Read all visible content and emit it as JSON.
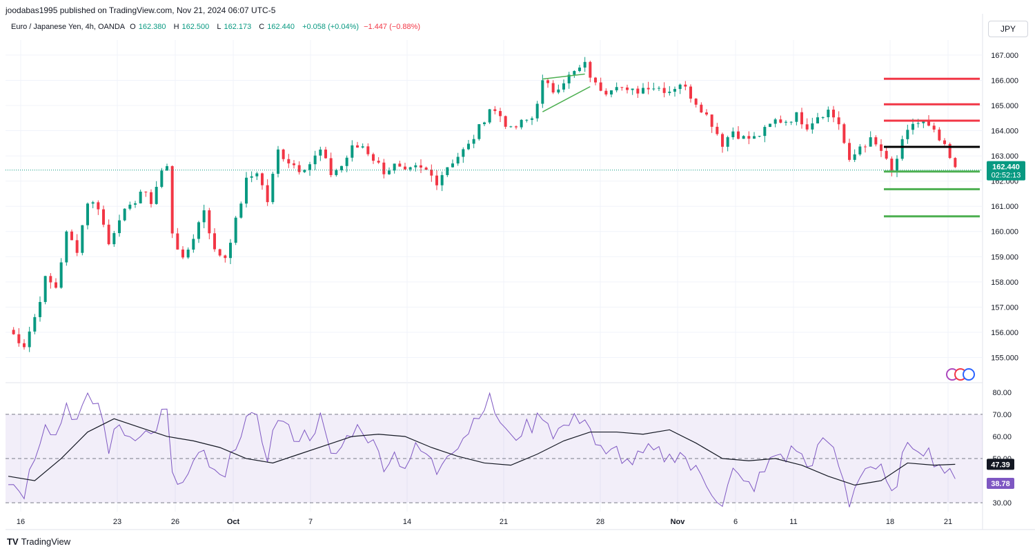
{
  "header": {
    "published": "joodabas1995 published on TradingView.com, Nov 21, 2024 06:07 UTC-5"
  },
  "legend": {
    "symbol": "Euro / Japanese Yen, 4h, OANDA",
    "open_label": "O",
    "open": "162.380",
    "high_label": "H",
    "high": "162.500",
    "low_label": "L",
    "low": "162.173",
    "close_label": "C",
    "close": "162.440",
    "change": "+0.058 (+0.04%)",
    "change2": "−1.447 (−0.88%)"
  },
  "currency_button": "JPY",
  "footer": {
    "logo": "TV",
    "brand": "TradingView"
  },
  "colors": {
    "up": "#089981",
    "down": "#f23645",
    "rsi": "#7e57c2",
    "rsi_ma": "#131722",
    "line_red": "#f23645",
    "line_green": "#4caf50",
    "line_black": "#000000",
    "price_tag": "#089981"
  },
  "chart_data": [
    {
      "type": "candlestick",
      "title": "Euro / Japanese Yen, 4h, OANDA",
      "ylim": [
        154.0,
        167.6
      ],
      "y_ticks": [
        "155.000",
        "156.000",
        "157.000",
        "158.000",
        "159.000",
        "160.000",
        "161.000",
        "162.000",
        "163.000",
        "164.000",
        "165.000",
        "166.000",
        "167.000"
      ],
      "x_ticks": [
        "16",
        "23",
        "26",
        "Oct",
        "7",
        "14",
        "21",
        "28",
        "Nov",
        "6",
        "11",
        "18",
        "21"
      ],
      "x_range": [
        "Sep 16",
        "Nov 21"
      ],
      "grid": true,
      "close_path": [
        [
          0,
          156.1
        ],
        [
          6,
          155.5
        ],
        [
          10,
          156.6
        ],
        [
          14,
          158.1
        ],
        [
          18,
          157.8
        ],
        [
          22,
          159.9
        ],
        [
          26,
          159.3
        ],
        [
          30,
          161.2
        ],
        [
          34,
          161.0
        ],
        [
          38,
          159.5
        ],
        [
          42,
          160.6
        ],
        [
          46,
          160.9
        ],
        [
          50,
          161.6
        ],
        [
          54,
          161.2
        ],
        [
          58,
          162.4
        ],
        [
          61,
          162.6
        ],
        [
          62,
          160.0
        ],
        [
          66,
          158.8
        ],
        [
          70,
          159.8
        ],
        [
          74,
          160.9
        ],
        [
          78,
          159.2
        ],
        [
          82,
          159.0
        ],
        [
          86,
          160.4
        ],
        [
          90,
          162.0
        ],
        [
          94,
          162.4
        ],
        [
          98,
          161.2
        ],
        [
          102,
          163.2
        ],
        [
          106,
          162.8
        ],
        [
          110,
          162.5
        ],
        [
          114,
          162.7
        ],
        [
          118,
          163.2
        ],
        [
          122,
          162.3
        ],
        [
          126,
          162.6
        ],
        [
          130,
          163.3
        ],
        [
          134,
          163.4
        ],
        [
          138,
          162.9
        ],
        [
          142,
          162.4
        ],
        [
          146,
          162.6
        ],
        [
          150,
          162.3
        ],
        [
          154,
          162.5
        ],
        [
          158,
          162.4
        ],
        [
          162,
          162.0
        ],
        [
          166,
          162.6
        ],
        [
          170,
          163.0
        ],
        [
          174,
          163.4
        ],
        [
          178,
          164.1
        ],
        [
          182,
          164.9
        ],
        [
          186,
          164.6
        ],
        [
          190,
          164.0
        ],
        [
          194,
          164.3
        ],
        [
          198,
          164.5
        ],
        [
          202,
          165.9
        ],
        [
          206,
          165.6
        ],
        [
          210,
          166.0
        ],
        [
          214,
          166.3
        ],
        [
          218,
          166.6
        ],
        [
          222,
          165.8
        ],
        [
          226,
          165.6
        ],
        [
          230,
          165.9
        ],
        [
          234,
          165.5
        ],
        [
          238,
          165.6
        ],
        [
          242,
          165.8
        ],
        [
          246,
          165.7
        ],
        [
          250,
          165.6
        ],
        [
          254,
          165.9
        ],
        [
          258,
          165.4
        ],
        [
          262,
          164.9
        ],
        [
          266,
          164.3
        ],
        [
          270,
          163.5
        ],
        [
          274,
          164.0
        ],
        [
          278,
          163.7
        ],
        [
          282,
          163.7
        ],
        [
          286,
          164.0
        ],
        [
          290,
          164.4
        ],
        [
          294,
          164.4
        ],
        [
          298,
          164.6
        ],
        [
          302,
          164.2
        ],
        [
          306,
          164.6
        ],
        [
          310,
          164.8
        ],
        [
          314,
          164.3
        ],
        [
          318,
          162.7
        ],
        [
          322,
          163.4
        ],
        [
          326,
          163.6
        ],
        [
          330,
          163.2
        ],
        [
          334,
          162.3
        ],
        [
          338,
          163.5
        ],
        [
          342,
          164.3
        ],
        [
          346,
          164.3
        ],
        [
          350,
          163.9
        ],
        [
          354,
          163.3
        ],
        [
          358,
          162.44
        ]
      ],
      "last_price": "162.440",
      "countdown": "02:52:13",
      "levels": [
        {
          "color": "red",
          "value": 166.06
        },
        {
          "color": "red",
          "value": 165.05
        },
        {
          "color": "red",
          "value": 164.4
        },
        {
          "color": "black",
          "value": 163.36
        },
        {
          "color": "green",
          "value": 162.38
        },
        {
          "color": "green",
          "value": 161.68
        },
        {
          "color": "green",
          "value": 160.6
        }
      ]
    },
    {
      "type": "line",
      "title": "RSI",
      "ylim": [
        26.0,
        84.0
      ],
      "y_ticks": [
        "30.00",
        "40.00",
        "50.00",
        "60.00",
        "70.00",
        "80.00"
      ],
      "bands": [
        30,
        50,
        70
      ],
      "series": [
        {
          "role": "rsi",
          "last": "38.78",
          "values": [
            [
              0,
              40
            ],
            [
              6,
              35
            ],
            [
              10,
              52
            ],
            [
              14,
              68
            ],
            [
              18,
              60
            ],
            [
              22,
              75
            ],
            [
              26,
              67
            ],
            [
              30,
              76
            ],
            [
              34,
              75
            ],
            [
              38,
              55
            ],
            [
              42,
              65
            ],
            [
              46,
              60
            ],
            [
              50,
              63
            ],
            [
              54,
              60
            ],
            [
              58,
              70
            ],
            [
              61,
              71
            ],
            [
              62,
              41
            ],
            [
              66,
              38
            ],
            [
              70,
              47
            ],
            [
              74,
              52
            ],
            [
              78,
              42
            ],
            [
              82,
              40
            ],
            [
              86,
              58
            ],
            [
              90,
              68
            ],
            [
              94,
              66
            ],
            [
              98,
              52
            ],
            [
              102,
              69
            ],
            [
              106,
              62
            ],
            [
              110,
              60
            ],
            [
              114,
              61
            ],
            [
              118,
              68
            ],
            [
              122,
              50
            ],
            [
              126,
              55
            ],
            [
              130,
              63
            ],
            [
              134,
              64
            ],
            [
              138,
              56
            ],
            [
              142,
              48
            ],
            [
              146,
              52
            ],
            [
              150,
              47
            ],
            [
              154,
              54
            ],
            [
              158,
              52
            ],
            [
              162,
              44
            ],
            [
              166,
              54
            ],
            [
              170,
              57
            ],
            [
              174,
              63
            ],
            [
              178,
              72
            ],
            [
              182,
              76
            ],
            [
              186,
              67
            ],
            [
              190,
              58
            ],
            [
              194,
              63
            ],
            [
              198,
              65
            ],
            [
              202,
              71
            ],
            [
              206,
              62
            ],
            [
              210,
              64
            ],
            [
              214,
              67
            ],
            [
              218,
              70
            ],
            [
              222,
              57
            ],
            [
              226,
              50
            ],
            [
              230,
              54
            ],
            [
              234,
              48
            ],
            [
              238,
              50
            ],
            [
              242,
              53
            ],
            [
              246,
              52
            ],
            [
              250,
              50
            ],
            [
              254,
              54
            ],
            [
              258,
              46
            ],
            [
              262,
              42
            ],
            [
              266,
              36
            ],
            [
              270,
              30
            ],
            [
              274,
              44
            ],
            [
              278,
              38
            ],
            [
              282,
              38
            ],
            [
              286,
              44
            ],
            [
              290,
              52
            ],
            [
              294,
              51
            ],
            [
              298,
              55
            ],
            [
              302,
              46
            ],
            [
              306,
              54
            ],
            [
              310,
              58
            ],
            [
              314,
              47
            ],
            [
              318,
              30
            ],
            [
              322,
              44
            ],
            [
              326,
              47
            ],
            [
              330,
              44
            ],
            [
              334,
              32
            ],
            [
              338,
              50
            ],
            [
              342,
              57
            ],
            [
              346,
              55
            ],
            [
              350,
              50
            ],
            [
              354,
              45
            ],
            [
              358,
              38.78
            ]
          ]
        },
        {
          "role": "rsi_ma",
          "last": "47.39",
          "values": [
            [
              0,
              42
            ],
            [
              10,
              40
            ],
            [
              20,
              50
            ],
            [
              30,
              62
            ],
            [
              40,
              68
            ],
            [
              50,
              64
            ],
            [
              60,
              60
            ],
            [
              70,
              58
            ],
            [
              80,
              55
            ],
            [
              90,
              50
            ],
            [
              100,
              48
            ],
            [
              110,
              52
            ],
            [
              120,
              56
            ],
            [
              130,
              60
            ],
            [
              140,
              61
            ],
            [
              150,
              60
            ],
            [
              160,
              55
            ],
            [
              170,
              51
            ],
            [
              180,
              48
            ],
            [
              190,
              47
            ],
            [
              200,
              52
            ],
            [
              210,
              58
            ],
            [
              220,
              62
            ],
            [
              230,
              62
            ],
            [
              240,
              61
            ],
            [
              250,
              63
            ],
            [
              260,
              57
            ],
            [
              270,
              50
            ],
            [
              280,
              49
            ],
            [
              290,
              50
            ],
            [
              300,
              47
            ],
            [
              310,
              42
            ],
            [
              320,
              38
            ],
            [
              330,
              40
            ],
            [
              340,
              48
            ],
            [
              350,
              47
            ],
            [
              358,
              47.39
            ]
          ]
        }
      ]
    }
  ]
}
